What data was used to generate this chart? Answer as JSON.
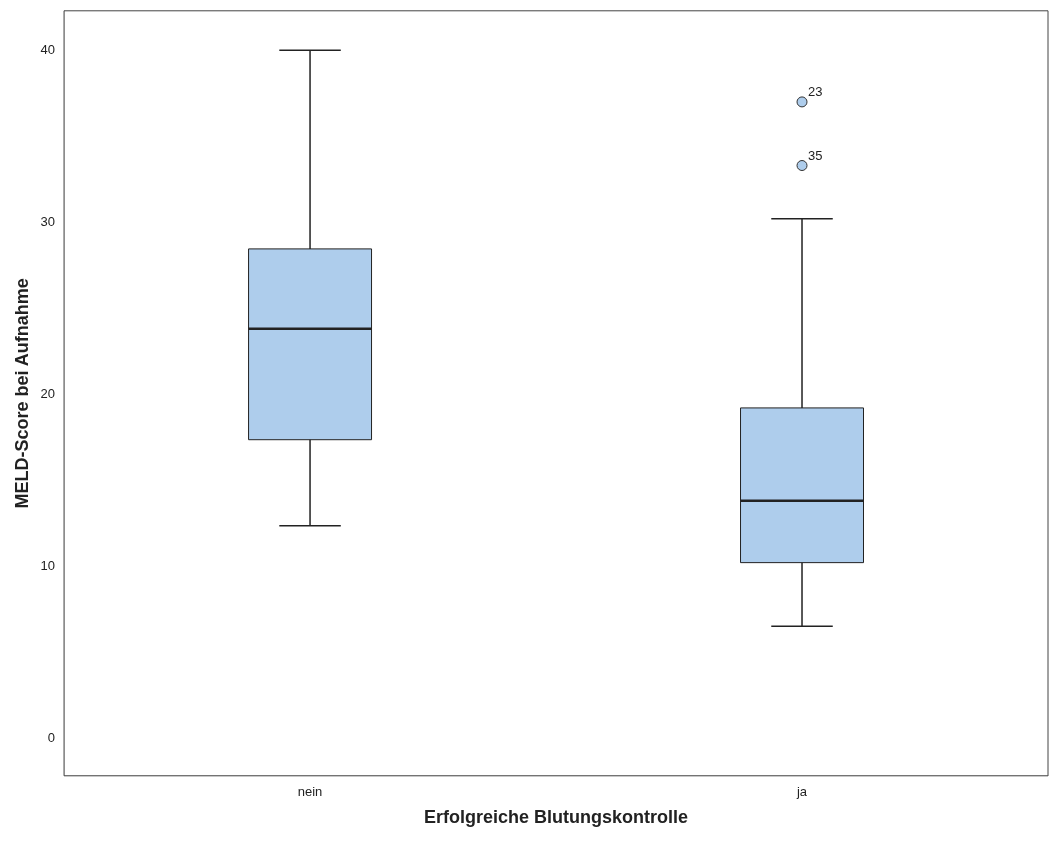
{
  "chart_data": {
    "type": "box",
    "xlabel": "Erfolgreiche Blutungskontrolle",
    "ylabel": "MELD-Score bei Aufnahme",
    "categories": [
      "nein",
      "ja"
    ],
    "color": "#aecdec",
    "boxes": [
      {
        "low": 12.35,
        "q1": 17.35,
        "median": 23.8,
        "q3": 28.45,
        "high": 40
      },
      {
        "low": 6.5,
        "q1": 10.2,
        "median": 13.8,
        "q3": 19.2,
        "high": 30.2,
        "outliers": [
          37.0,
          33.3
        ]
      }
    ],
    "ylim": [
      -2.2,
      42.3
    ],
    "yticks": [
      0,
      10,
      20,
      30,
      40
    ],
    "grid": false,
    "legend": false,
    "annotations": [
      "23",
      "35"
    ]
  }
}
